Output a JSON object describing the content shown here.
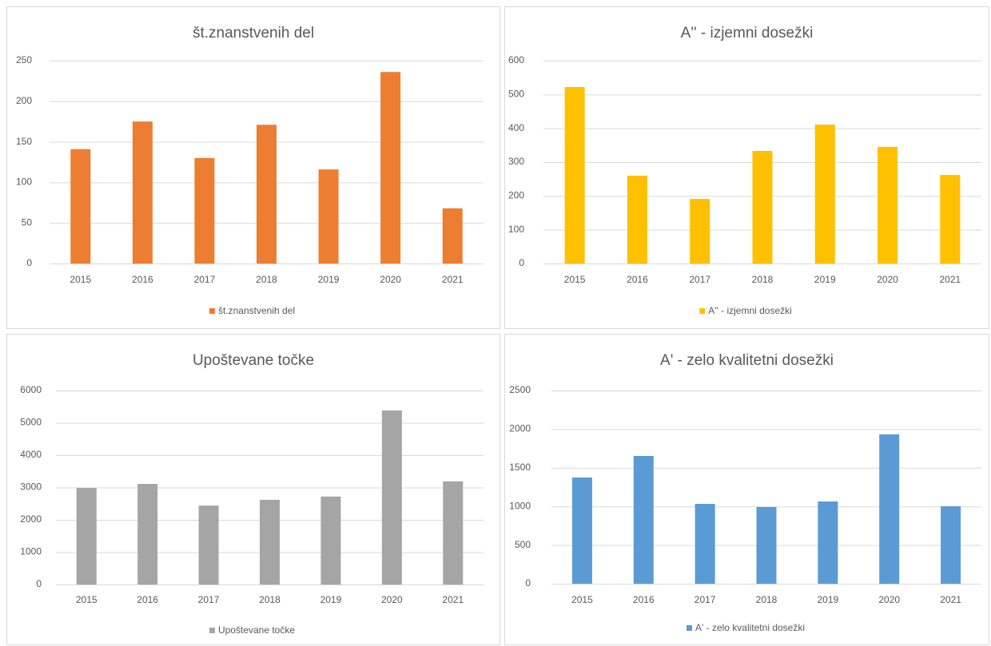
{
  "chart_data": [
    {
      "type": "bar",
      "title": "št.znanstvenih del",
      "categories": [
        "2015",
        "2016",
        "2017",
        "2018",
        "2019",
        "2020",
        "2021"
      ],
      "series": [
        {
          "name": "št.znanstvenih del",
          "color": "#ed7d31",
          "values": [
            141,
            175,
            130,
            171,
            116,
            236,
            68
          ]
        }
      ],
      "ylim": [
        0,
        250
      ],
      "yticks": [
        0,
        50,
        100,
        150,
        200,
        250
      ],
      "grid": true,
      "legend": "bottom"
    },
    {
      "type": "bar",
      "title": "A'' - izjemni dosežki",
      "categories": [
        "2015",
        "2016",
        "2017",
        "2018",
        "2019",
        "2020",
        "2021"
      ],
      "series": [
        {
          "name": "A'' - izjemni dosežki",
          "color": "#ffc000",
          "values": [
            522,
            260,
            191,
            333,
            411,
            345,
            262
          ]
        }
      ],
      "ylim": [
        0,
        600
      ],
      "yticks": [
        0,
        100,
        200,
        300,
        400,
        500,
        600
      ],
      "grid": true,
      "legend": "bottom"
    },
    {
      "type": "bar",
      "title": "Upoštevane točke",
      "categories": [
        "2015",
        "2016",
        "2017",
        "2018",
        "2019",
        "2020",
        "2021"
      ],
      "series": [
        {
          "name": "Upoštevane točke",
          "color": "#a5a5a5",
          "values": [
            2990,
            3110,
            2440,
            2620,
            2720,
            5380,
            3190
          ]
        }
      ],
      "ylim": [
        0,
        6000
      ],
      "yticks": [
        0,
        1000,
        2000,
        3000,
        4000,
        5000,
        6000
      ],
      "grid": true,
      "legend": "bottom"
    },
    {
      "type": "bar",
      "title": "A' - zelo kvalitetni dosežki",
      "categories": [
        "2015",
        "2016",
        "2017",
        "2018",
        "2019",
        "2020",
        "2021"
      ],
      "series": [
        {
          "name": "A' - zelo kvalitetni dosežki",
          "color": "#5b9bd5",
          "values": [
            1374,
            1653,
            1033,
            992,
            1064,
            1932,
            1002
          ]
        }
      ],
      "ylim": [
        0,
        2500
      ],
      "yticks": [
        0,
        500,
        1000,
        1500,
        2000,
        2500
      ],
      "grid": true,
      "legend": "bottom"
    }
  ]
}
